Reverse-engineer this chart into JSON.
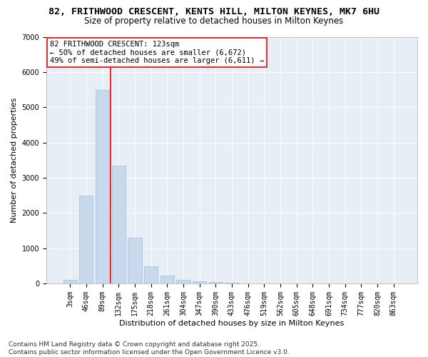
{
  "title1": "82, FRITHWOOD CRESCENT, KENTS HILL, MILTON KEYNES, MK7 6HU",
  "title2": "Size of property relative to detached houses in Milton Keynes",
  "xlabel": "Distribution of detached houses by size in Milton Keynes",
  "ylabel": "Number of detached properties",
  "categories": [
    "3sqm",
    "46sqm",
    "89sqm",
    "132sqm",
    "175sqm",
    "218sqm",
    "261sqm",
    "304sqm",
    "347sqm",
    "390sqm",
    "433sqm",
    "476sqm",
    "519sqm",
    "562sqm",
    "605sqm",
    "648sqm",
    "691sqm",
    "734sqm",
    "777sqm",
    "820sqm",
    "863sqm"
  ],
  "values": [
    100,
    2500,
    5500,
    3350,
    1300,
    480,
    220,
    100,
    55,
    30,
    10,
    5,
    3,
    2,
    1,
    1,
    0,
    0,
    0,
    0,
    0
  ],
  "bar_color": "#c8d9ed",
  "bar_edge_color": "#9dbfda",
  "vline_x_index": 3,
  "vline_color": "red",
  "annotation_box_text": "82 FRITHWOOD CRESCENT: 123sqm\n← 50% of detached houses are smaller (6,672)\n49% of semi-detached houses are larger (6,611) →",
  "ylim": [
    0,
    7000
  ],
  "yticks": [
    0,
    1000,
    2000,
    3000,
    4000,
    5000,
    6000,
    7000
  ],
  "bg_color": "#e8eef6",
  "footer_text": "Contains HM Land Registry data © Crown copyright and database right 2025.\nContains public sector information licensed under the Open Government Licence v3.0.",
  "title1_fontsize": 9.5,
  "title2_fontsize": 8.5,
  "xlabel_fontsize": 8,
  "ylabel_fontsize": 8,
  "tick_fontsize": 7,
  "annotation_fontsize": 7.5,
  "footer_fontsize": 6.5
}
